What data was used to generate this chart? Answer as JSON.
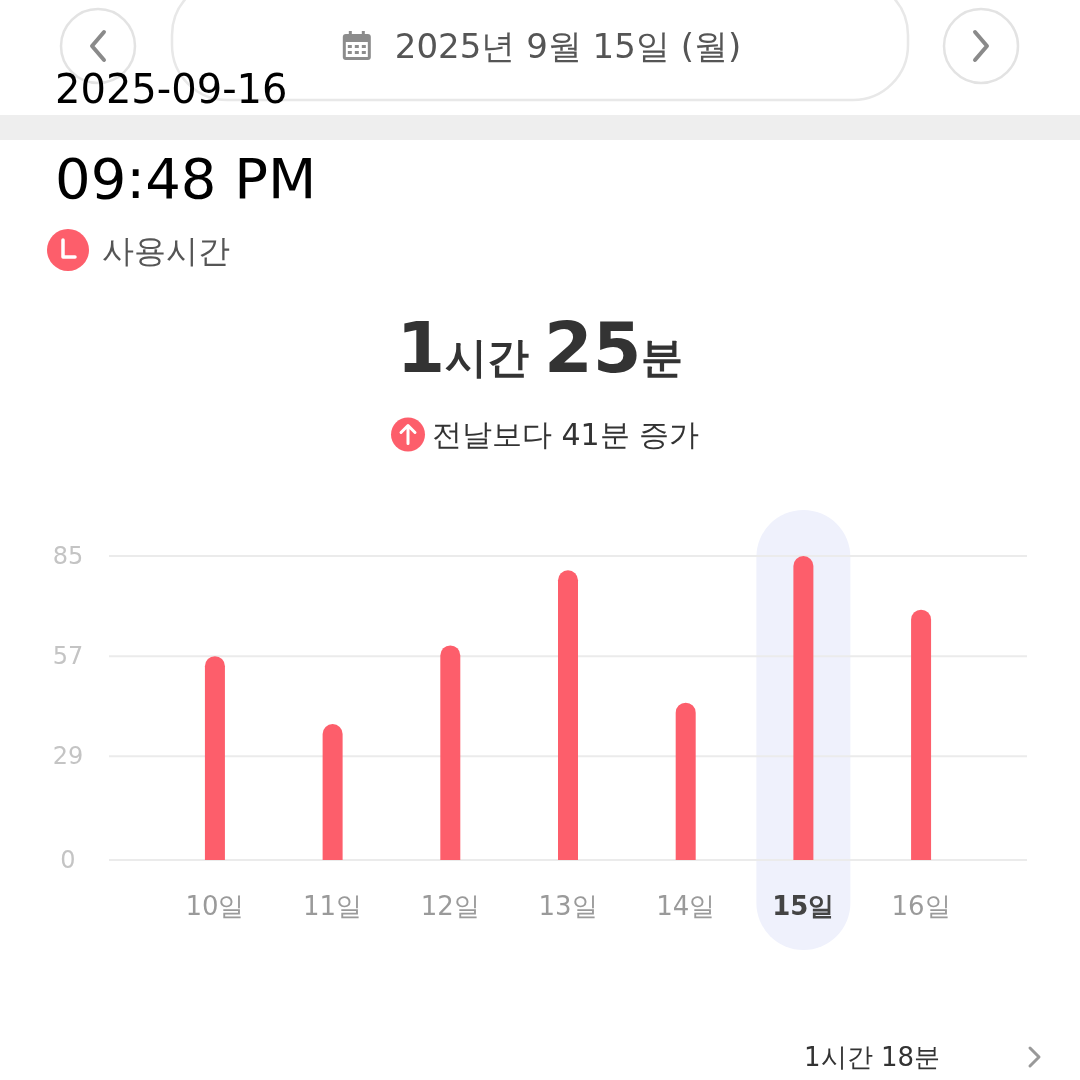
{
  "chart_data": {
    "type": "bar",
    "title": "사용시간",
    "subtitle": "1시간 25분",
    "categories": [
      "10일",
      "11일",
      "12일",
      "13일",
      "14일",
      "15일",
      "16일"
    ],
    "values": [
      57,
      38,
      60,
      81,
      44,
      85,
      70
    ],
    "color": "#fd5e6b",
    "ylim": [
      0,
      85
    ],
    "yticks": [
      0,
      29,
      57,
      85
    ],
    "grid": "y",
    "bands": [
      {
        "axis": "x",
        "from": "15일",
        "to": "15일",
        "color": "#eff1fc"
      }
    ],
    "annotations": [
      "2025년 9월 15일 (월)",
      "2025-09-16",
      "09:48 PM",
      "전날보다 41분 증가",
      "1시간 18분"
    ]
  }
}
